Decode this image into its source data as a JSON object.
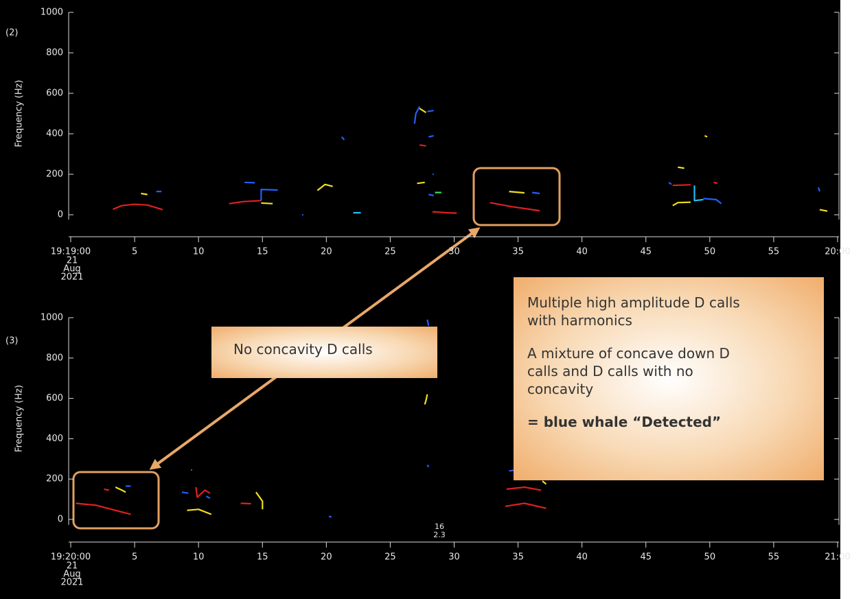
{
  "chart_data": [
    {
      "type": "contour",
      "panel_label": "(2)",
      "ylabel": "Frequency (Hz)",
      "xlim": [
        0,
        60
      ],
      "xticks": [
        {
          "value": 0,
          "label": "19:19:00"
        },
        5,
        10,
        15,
        20,
        25,
        30,
        35,
        40,
        45,
        50,
        55,
        {
          "value": 60,
          "label": "20:00"
        }
      ],
      "date_label": [
        "21",
        "Aug",
        "2021"
      ],
      "ylim": [
        0,
        1000
      ],
      "yticks": [
        0,
        200,
        400,
        600,
        800,
        1000
      ],
      "contours": [
        {
          "x": [
            3.3,
            4,
            5,
            6,
            7.2
          ],
          "y": [
            27,
            45,
            52,
            48,
            25
          ],
          "color": "#e02020"
        },
        {
          "x": [
            5.5,
            6.0
          ],
          "y": [
            105,
            100
          ],
          "color": "#f0e020"
        },
        {
          "x": [
            6.7,
            7.1
          ],
          "y": [
            115,
            115
          ],
          "color": "#2060ff"
        },
        {
          "x": [
            12.4,
            13.5,
            14.9
          ],
          "y": [
            55,
            65,
            70
          ],
          "color": "#e02020"
        },
        {
          "x": [
            13.6,
            14.4
          ],
          "y": [
            160,
            158
          ],
          "color": "#2060ff"
        },
        {
          "x": [
            14.9,
            15.8
          ],
          "y": [
            58,
            55
          ],
          "color": "#f0e020"
        },
        {
          "x": [
            14.9,
            14.9,
            16.2
          ],
          "y": [
            70,
            125,
            122
          ],
          "color": "#2060ff"
        },
        {
          "x": [
            18.1,
            18.2
          ],
          "y": [
            0,
            0
          ],
          "color": "#2060ff"
        },
        {
          "x": [
            19.3,
            19.9,
            20.5
          ],
          "y": [
            120,
            150,
            140
          ],
          "color": "#f0e020"
        },
        {
          "x": [
            21.2,
            21.4
          ],
          "y": [
            385,
            370
          ],
          "color": "#2060ff"
        },
        {
          "x": [
            22.1,
            22.7
          ],
          "y": [
            10,
            10
          ],
          "color": "#20c0f0"
        },
        {
          "x": [
            26.9,
            27.0,
            27.3
          ],
          "y": [
            450,
            500,
            535
          ],
          "color": "#2060ff"
        },
        {
          "x": [
            27.3,
            27.8
          ],
          "y": [
            525,
            505
          ],
          "color": "#f0e020"
        },
        {
          "x": [
            27.9,
            28.4
          ],
          "y": [
            510,
            515
          ],
          "color": "#2060ff"
        },
        {
          "x": [
            27.3,
            27.8
          ],
          "y": [
            345,
            340
          ],
          "color": "#e02020"
        },
        {
          "x": [
            28.0,
            28.4
          ],
          "y": [
            385,
            390
          ],
          "color": "#2060ff"
        },
        {
          "x": [
            27.1,
            27.7
          ],
          "y": [
            155,
            160
          ],
          "color": "#f0e020"
        },
        {
          "x": [
            28.0,
            28.4
          ],
          "y": [
            100,
            95
          ],
          "color": "#2060ff"
        },
        {
          "x": [
            28.5,
            29.0
          ],
          "y": [
            110,
            110
          ],
          "color": "#40e060"
        },
        {
          "x": [
            28.3,
            29.5,
            30.2
          ],
          "y": [
            15,
            10,
            8
          ],
          "color": "#e02020"
        },
        {
          "x": [
            28.3,
            28.4
          ],
          "y": [
            200,
            200
          ],
          "color": "#2060ff"
        },
        {
          "x": [
            32.8,
            34.5,
            36.7
          ],
          "y": [
            60,
            40,
            20
          ],
          "color": "#e02020"
        },
        {
          "x": [
            34.3,
            35.5
          ],
          "y": [
            115,
            108
          ],
          "color": "#f0e020"
        },
        {
          "x": [
            36.1,
            36.7
          ],
          "y": [
            110,
            105
          ],
          "color": "#2060ff"
        },
        {
          "x": [
            47.1,
            48.5
          ],
          "y": [
            145,
            148
          ],
          "color": "#e02020"
        },
        {
          "x": [
            48.8,
            48.8,
            49.5
          ],
          "y": [
            145,
            70,
            75
          ],
          "color": "#20c0f0"
        },
        {
          "x": [
            47.1,
            47.5,
            48.5
          ],
          "y": [
            45,
            60,
            62
          ],
          "color": "#f0e020"
        },
        {
          "x": [
            49.5,
            50.5,
            50.9
          ],
          "y": [
            80,
            75,
            55
          ],
          "color": "#2060ff"
        },
        {
          "x": [
            47.5,
            48.0
          ],
          "y": [
            235,
            230
          ],
          "color": "#f0e020"
        },
        {
          "x": [
            46.8,
            47.0
          ],
          "y": [
            160,
            150
          ],
          "color": "#2060ff"
        },
        {
          "x": [
            50.3,
            50.6
          ],
          "y": [
            160,
            155
          ],
          "color": "#e02020"
        },
        {
          "x": [
            49.6,
            49.8
          ],
          "y": [
            390,
            385
          ],
          "color": "#f0e020"
        },
        {
          "x": [
            58.5,
            58.6
          ],
          "y": [
            135,
            115
          ],
          "color": "#2060ff"
        },
        {
          "x": [
            58.6,
            59.2
          ],
          "y": [
            25,
            18
          ],
          "color": "#f0e020"
        }
      ]
    },
    {
      "type": "contour",
      "panel_label": "(3)",
      "ylabel": "Frequency (Hz)",
      "xlim": [
        0,
        60
      ],
      "xticks": [
        {
          "value": 0,
          "label": "19:20:00"
        },
        5,
        10,
        15,
        20,
        25,
        30,
        35,
        40,
        45,
        50,
        55,
        {
          "value": 60,
          "label": "21:00"
        }
      ],
      "date_label": [
        "21",
        "Aug",
        "2021"
      ],
      "ylim": [
        0,
        1000
      ],
      "yticks": [
        0,
        200,
        400,
        600,
        800,
        1000
      ],
      "marker_labels": [
        "16",
        "2.3"
      ],
      "contours": [
        {
          "x": [
            0.4,
            2,
            3.5,
            4.7
          ],
          "y": [
            80,
            70,
            45,
            25
          ],
          "color": "#e02020"
        },
        {
          "x": [
            2.6,
            3.0
          ],
          "y": [
            150,
            145
          ],
          "color": "#e02020"
        },
        {
          "x": [
            3.5,
            4.0,
            4.3
          ],
          "y": [
            160,
            145,
            135
          ],
          "color": "#f0e020"
        },
        {
          "x": [
            4.3,
            4.7
          ],
          "y": [
            165,
            165
          ],
          "color": "#2060ff"
        },
        {
          "x": [
            8.7,
            9.2
          ],
          "y": [
            135,
            130
          ],
          "color": "#2060ff"
        },
        {
          "x": [
            9.4,
            9.5
          ],
          "y": [
            245,
            245
          ],
          "color": "#2060ff"
        },
        {
          "x": [
            9.8,
            9.9,
            10.5,
            10.9
          ],
          "y": [
            160,
            110,
            145,
            130
          ],
          "color": "#e02020"
        },
        {
          "x": [
            10.6,
            10.9
          ],
          "y": [
            115,
            105
          ],
          "color": "#2060ff"
        },
        {
          "x": [
            9.1,
            10.0,
            11.0
          ],
          "y": [
            45,
            50,
            25
          ],
          "color": "#f0e020"
        },
        {
          "x": [
            13.3,
            14.1
          ],
          "y": [
            80,
            78
          ],
          "color": "#e02020"
        },
        {
          "x": [
            14.5,
            15.0,
            15.0
          ],
          "y": [
            135,
            90,
            50
          ],
          "color": "#f0e020"
        },
        {
          "x": [
            20.2,
            20.4
          ],
          "y": [
            15,
            12
          ],
          "color": "#2060ff"
        },
        {
          "x": [
            27.9,
            28.0
          ],
          "y": [
            990,
            960
          ],
          "color": "#2060ff"
        },
        {
          "x": [
            27.9,
            27.8,
            27.7
          ],
          "y": [
            620,
            590,
            570
          ],
          "color": "#f0e020"
        },
        {
          "x": [
            27.9,
            28.0
          ],
          "y": [
            270,
            260
          ],
          "color": "#2060ff"
        },
        {
          "x": [
            34.0,
            35.5,
            37.2
          ],
          "y": [
            65,
            80,
            55
          ],
          "color": "#e02020"
        },
        {
          "x": [
            34.1,
            35.5,
            36.8
          ],
          "y": [
            150,
            160,
            145
          ],
          "color": "#e02020"
        },
        {
          "x": [
            34.3,
            34.8
          ],
          "y": [
            240,
            245
          ],
          "color": "#2060ff"
        },
        {
          "x": [
            36.9,
            37.2
          ],
          "y": [
            190,
            175
          ],
          "color": "#f0e020"
        }
      ]
    }
  ],
  "callouts": {
    "short": "No concavity D calls",
    "detail": [
      [
        "Multiple high amplitude D calls",
        "with harmonics"
      ],
      [
        "A mixture of concave down D",
        "calls and D calls with no",
        "concavity"
      ]
    ],
    "conclusion": "= blue whale “Detected”"
  }
}
